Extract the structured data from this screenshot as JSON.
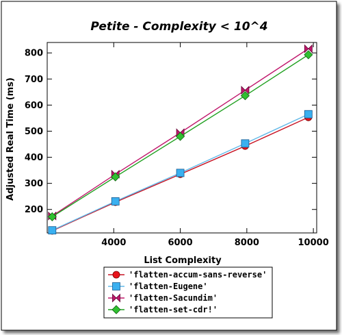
{
  "chart_data": {
    "type": "line",
    "title": "Petite - Complexity < 10^4",
    "xlabel": "List Complexity",
    "ylabel": "Adjusted Real Time (ms)",
    "xlim": [
      2000,
      10100
    ],
    "ylim": [
      110,
      840
    ],
    "xticks": [
      4000,
      6000,
      8000,
      10000
    ],
    "yticks": [
      200,
      300,
      400,
      500,
      600,
      700,
      800
    ],
    "grid": false,
    "legend_position": "bottom",
    "series": [
      {
        "name": "'flatten-accum-sans-reverse'",
        "color": "#e8141c",
        "line_color": "#c81424",
        "marker": "circle",
        "x": [
          2150,
          4050,
          6000,
          7950,
          9850
        ],
        "y": [
          118,
          228,
          335,
          443,
          553
        ]
      },
      {
        "name": "'flatten-Eugene'",
        "color": "#3ab0f0",
        "line_color": "#60b8e8",
        "marker": "square",
        "x": [
          2150,
          4050,
          6000,
          7950,
          9850
        ],
        "y": [
          120,
          231,
          340,
          453,
          565
        ]
      },
      {
        "name": "'flatten-Sacundim'",
        "color": "#c0186c",
        "line_color": "#c0186c",
        "marker": "bowtie",
        "x": [
          2150,
          4050,
          6000,
          7950,
          9850
        ],
        "y": [
          175,
          335,
          494,
          657,
          816
        ]
      },
      {
        "name": "'flatten-set-cdr!'",
        "color": "#30c030",
        "line_color": "#20a020",
        "marker": "diamond",
        "x": [
          2150,
          4050,
          6000,
          7950,
          9850
        ],
        "y": [
          172,
          325,
          480,
          636,
          793
        ]
      }
    ]
  }
}
